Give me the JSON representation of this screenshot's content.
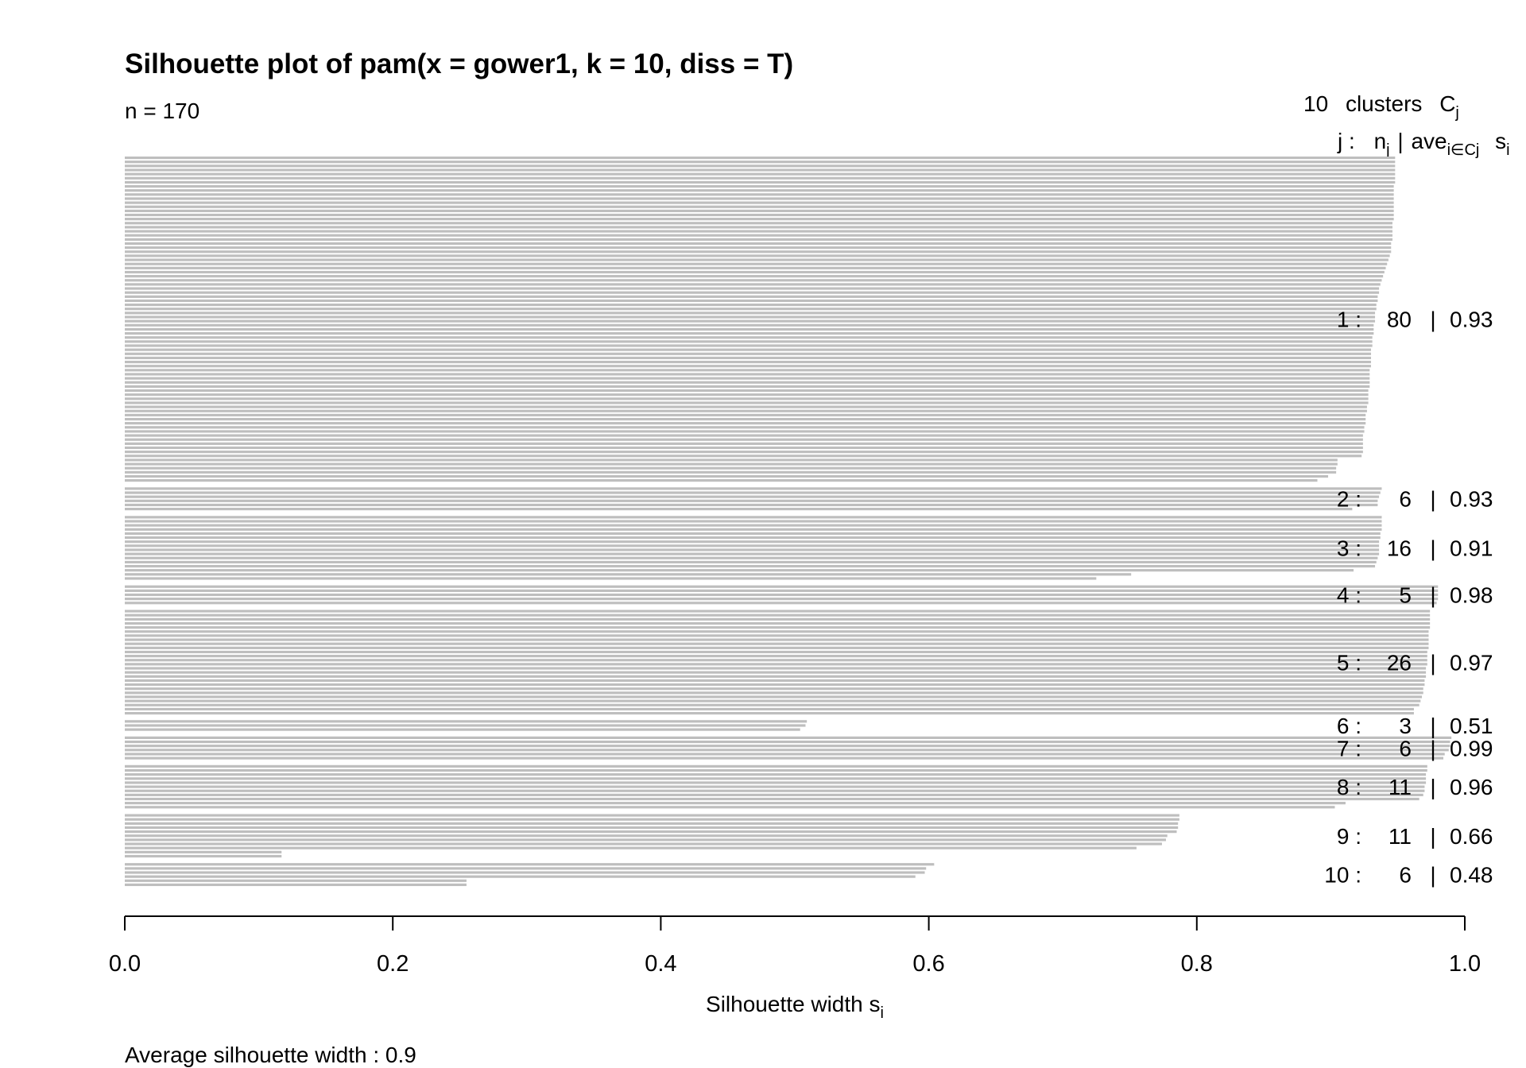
{
  "chart_data": {
    "type": "bar",
    "orientation": "horizontal",
    "title": "Silhouette plot of pam(x = gower1, k = 10, diss = T)",
    "n_label": "n = 170",
    "header": {
      "k": "10",
      "clusters_text": "clusters",
      "C": "C",
      "j_sub": "j",
      "j_col": "j :",
      "n": "n",
      "n_sub": "j",
      "sep": "|",
      "ave": "ave",
      "ave_sub": "i∈Cj",
      "s": "s",
      "s_sub": "i"
    },
    "xlabel": "Silhouette width s",
    "xlabel_sub": "i",
    "xlim": [
      0,
      1
    ],
    "xticks": [
      "0.0",
      "0.2",
      "0.4",
      "0.6",
      "0.8",
      "1.0"
    ],
    "bar_color": "#bebebe",
    "footer": "Average silhouette width :  0.9",
    "clusters": [
      {
        "id": "1",
        "n": "80",
        "ave": "0.93",
        "widths": [
          0.948,
          0.948,
          0.948,
          0.948,
          0.948,
          0.948,
          0.948,
          0.947,
          0.947,
          0.947,
          0.947,
          0.947,
          0.947,
          0.947,
          0.947,
          0.947,
          0.946,
          0.946,
          0.946,
          0.946,
          0.946,
          0.945,
          0.945,
          0.945,
          0.944,
          0.943,
          0.942,
          0.941,
          0.94,
          0.939,
          0.938,
          0.937,
          0.936,
          0.936,
          0.935,
          0.935,
          0.934,
          0.934,
          0.933,
          0.933,
          0.933,
          0.932,
          0.932,
          0.932,
          0.931,
          0.931,
          0.931,
          0.93,
          0.93,
          0.93,
          0.93,
          0.93,
          0.929,
          0.929,
          0.929,
          0.929,
          0.929,
          0.928,
          0.928,
          0.928,
          0.928,
          0.927,
          0.927,
          0.926,
          0.926,
          0.926,
          0.925,
          0.925,
          0.924,
          0.924,
          0.924,
          0.924,
          0.924,
          0.923,
          0.905,
          0.905,
          0.904,
          0.904,
          0.898,
          0.89
        ]
      },
      {
        "id": "2",
        "n": "6",
        "ave": "0.93",
        "widths": [
          0.938,
          0.937,
          0.936,
          0.935,
          0.935,
          0.916
        ]
      },
      {
        "id": "3",
        "n": "16",
        "ave": "0.91",
        "widths": [
          0.938,
          0.938,
          0.938,
          0.938,
          0.937,
          0.937,
          0.936,
          0.936,
          0.936,
          0.936,
          0.935,
          0.934,
          0.933,
          0.917,
          0.751,
          0.725
        ]
      },
      {
        "id": "4",
        "n": "5",
        "ave": "0.98",
        "widths": [
          0.98,
          0.98,
          0.98,
          0.98,
          0.979
        ]
      },
      {
        "id": "5",
        "n": "26",
        "ave": "0.97",
        "widths": [
          0.974,
          0.974,
          0.974,
          0.974,
          0.974,
          0.973,
          0.973,
          0.973,
          0.973,
          0.973,
          0.972,
          0.972,
          0.972,
          0.972,
          0.971,
          0.971,
          0.971,
          0.97,
          0.97,
          0.969,
          0.969,
          0.968,
          0.967,
          0.966,
          0.962,
          0.962
        ]
      },
      {
        "id": "6",
        "n": "3",
        "ave": "0.51",
        "widths": [
          0.509,
          0.508,
          0.504
        ]
      },
      {
        "id": "7",
        "n": "6",
        "ave": "0.99",
        "widths": [
          0.99,
          0.989,
          0.989,
          0.988,
          0.985,
          0.984
        ]
      },
      {
        "id": "8",
        "n": "11",
        "ave": "0.96",
        "widths": [
          0.972,
          0.972,
          0.971,
          0.971,
          0.971,
          0.97,
          0.97,
          0.969,
          0.966,
          0.911,
          0.903
        ]
      },
      {
        "id": "9",
        "n": "11",
        "ave": "0.66",
        "widths": [
          0.787,
          0.787,
          0.786,
          0.786,
          0.785,
          0.778,
          0.777,
          0.774,
          0.755,
          0.117,
          0.117
        ]
      },
      {
        "id": "10",
        "n": "6",
        "ave": "0.48",
        "widths": [
          0.604,
          0.598,
          0.597,
          0.59,
          0.255,
          0.255
        ]
      }
    ]
  }
}
